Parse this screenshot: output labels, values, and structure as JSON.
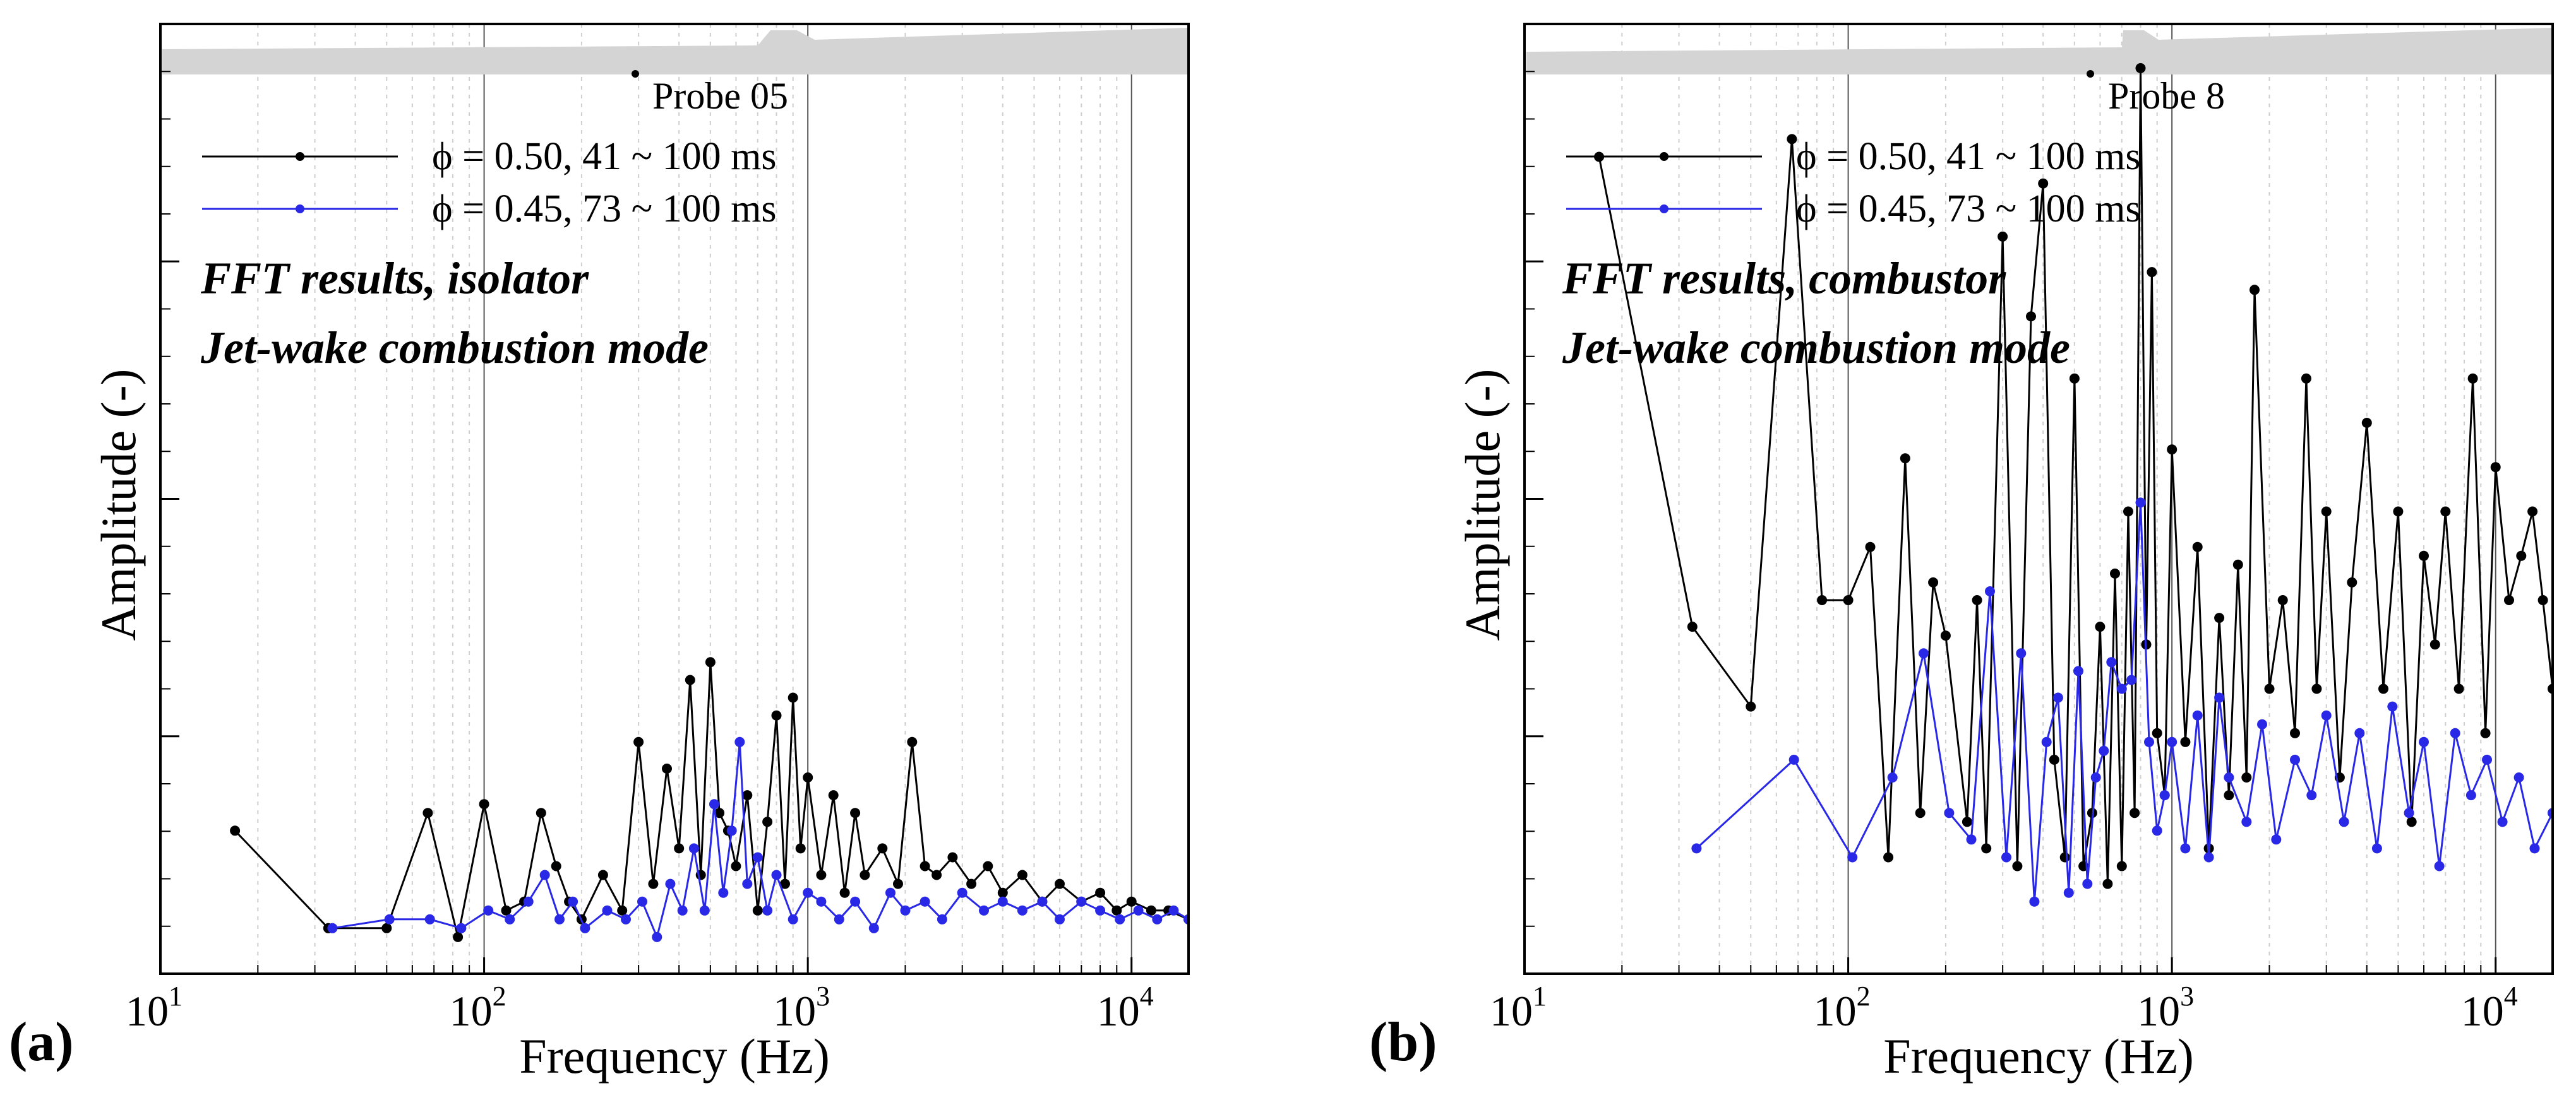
{
  "chart_data": [
    {
      "type": "line",
      "panel_label": "(a)",
      "probe": "Probe 05",
      "annotation": [
        "FFT results, isolator",
        "Jet-wake combustion mode"
      ],
      "xlabel": "Frequency (Hz)",
      "ylabel": "Amplitude (-)",
      "xscale": "log",
      "xlim": [
        10,
        15000
      ],
      "ylim": [
        0,
        1
      ],
      "grid": true,
      "legend_position": "top-left",
      "xticks": [
        {
          "base": "10",
          "exp": "1"
        },
        {
          "base": "10",
          "exp": "2"
        },
        {
          "base": "10",
          "exp": "3"
        },
        {
          "base": "10",
          "exp": "4"
        }
      ],
      "series": [
        {
          "name": "ϕ = 0.50, 41 ~ 100 ms",
          "color": "#000000",
          "x": [
            17,
            33,
            50,
            67,
            83,
            100,
            117,
            133,
            150,
            167,
            183,
            200,
            233,
            267,
            300,
            333,
            367,
            400,
            433,
            467,
            500,
            533,
            567,
            600,
            650,
            700,
            750,
            800,
            850,
            900,
            950,
            1000,
            1100,
            1200,
            1300,
            1400,
            1500,
            1700,
            1900,
            2100,
            2300,
            2500,
            2800,
            3200,
            3600,
            4000,
            4600,
            5300,
            6000,
            7000,
            8000,
            9000,
            10000,
            11500,
            13000,
            15000
          ],
          "y": [
            0.14,
            0.03,
            0.03,
            0.16,
            0.02,
            0.17,
            0.05,
            0.06,
            0.16,
            0.1,
            0.06,
            0.04,
            0.09,
            0.05,
            0.24,
            0.08,
            0.21,
            0.12,
            0.31,
            0.09,
            0.33,
            0.16,
            0.14,
            0.1,
            0.18,
            0.05,
            0.15,
            0.27,
            0.08,
            0.29,
            0.12,
            0.2,
            0.09,
            0.18,
            0.07,
            0.16,
            0.09,
            0.12,
            0.08,
            0.24,
            0.1,
            0.09,
            0.11,
            0.08,
            0.1,
            0.07,
            0.09,
            0.06,
            0.08,
            0.06,
            0.07,
            0.05,
            0.06,
            0.05,
            0.05,
            0.04
          ]
        },
        {
          "name": "ϕ = 0.45, 73 ~ 100 ms",
          "color": "#2828e6",
          "x": [
            34,
            51,
            68,
            85,
            103,
            120,
            137,
            154,
            171,
            188,
            205,
            240,
            274,
            308,
            342,
            376,
            410,
            445,
            480,
            514,
            548,
            582,
            616,
            650,
            700,
            750,
            800,
            900,
            1000,
            1100,
            1250,
            1400,
            1600,
            1800,
            2000,
            2300,
            2600,
            3000,
            3500,
            4000,
            4600,
            5300,
            6000,
            7000,
            8000,
            9200,
            10500,
            12000,
            13500,
            15000
          ],
          "y": [
            0.03,
            0.04,
            0.04,
            0.03,
            0.05,
            0.04,
            0.06,
            0.09,
            0.04,
            0.06,
            0.03,
            0.05,
            0.04,
            0.06,
            0.02,
            0.08,
            0.05,
            0.12,
            0.05,
            0.17,
            0.07,
            0.14,
            0.24,
            0.08,
            0.11,
            0.05,
            0.09,
            0.04,
            0.07,
            0.06,
            0.04,
            0.06,
            0.03,
            0.07,
            0.05,
            0.06,
            0.04,
            0.07,
            0.05,
            0.06,
            0.05,
            0.06,
            0.04,
            0.06,
            0.05,
            0.04,
            0.05,
            0.04,
            0.05,
            0.04
          ]
        }
      ]
    },
    {
      "type": "line",
      "panel_label": "(b)",
      "probe": "Probe 8",
      "annotation": [
        "FFT results, combustor",
        "Jet-wake combustion mode"
      ],
      "xlabel": "Frequency (Hz)",
      "ylabel": "Amplitude (-)",
      "xscale": "log",
      "xlim": [
        10,
        15000
      ],
      "ylim": [
        0,
        1
      ],
      "grid": true,
      "legend_position": "top-left",
      "xticks": [
        {
          "base": "10",
          "exp": "1"
        },
        {
          "base": "10",
          "exp": "2"
        },
        {
          "base": "10",
          "exp": "3"
        },
        {
          "base": "10",
          "exp": "4"
        }
      ],
      "series": [
        {
          "name": "ϕ = 0.50, 41 ~ 100 ms",
          "color": "#000000",
          "x": [
            17,
            33,
            50,
            67,
            83,
            100,
            117,
            133,
            150,
            167,
            183,
            200,
            233,
            250,
            267,
            300,
            333,
            367,
            400,
            433,
            467,
            500,
            533,
            567,
            600,
            633,
            667,
            700,
            733,
            767,
            800,
            833,
            867,
            900,
            950,
            1000,
            1100,
            1200,
            1300,
            1400,
            1500,
            1600,
            1700,
            1800,
            2000,
            2200,
            2400,
            2600,
            2800,
            3000,
            3300,
            3600,
            4000,
            4500,
            5000,
            5500,
            6000,
            6500,
            7000,
            7700,
            8500,
            9300,
            10000,
            11000,
            12000,
            13000,
            14000,
            15000
          ],
          "y": [
            0.9,
            0.37,
            0.28,
            0.92,
            0.4,
            0.4,
            0.46,
            0.11,
            0.56,
            0.16,
            0.42,
            0.36,
            0.15,
            0.4,
            0.12,
            0.81,
            0.1,
            0.72,
            0.87,
            0.22,
            0.11,
            0.65,
            0.1,
            0.16,
            0.37,
            0.08,
            0.43,
            0.1,
            0.5,
            0.16,
            1.0,
            0.35,
            0.77,
            0.25,
            0.18,
            0.57,
            0.24,
            0.46,
            0.12,
            0.38,
            0.18,
            0.44,
            0.2,
            0.75,
            0.3,
            0.4,
            0.25,
            0.65,
            0.3,
            0.5,
            0.2,
            0.42,
            0.6,
            0.3,
            0.5,
            0.15,
            0.45,
            0.35,
            0.5,
            0.3,
            0.65,
            0.25,
            0.55,
            0.4,
            0.45,
            0.5,
            0.4,
            0.3
          ]
        },
        {
          "name": "ϕ = 0.45, 73 ~ 100 ms",
          "color": "#2828e6",
          "x": [
            34,
            68,
            103,
            137,
            171,
            205,
            240,
            274,
            308,
            342,
            376,
            410,
            445,
            480,
            514,
            548,
            582,
            616,
            650,
            700,
            750,
            800,
            850,
            900,
            950,
            1000,
            1100,
            1200,
            1300,
            1400,
            1500,
            1700,
            1900,
            2100,
            2400,
            2700,
            3000,
            3400,
            3800,
            4300,
            4800,
            5400,
            6000,
            6700,
            7500,
            8400,
            9400,
            10500,
            11800,
            13200,
            15000
          ],
          "y": [
            0.12,
            0.22,
            0.11,
            0.2,
            0.34,
            0.16,
            0.13,
            0.41,
            0.11,
            0.34,
            0.06,
            0.24,
            0.29,
            0.07,
            0.32,
            0.08,
            0.2,
            0.23,
            0.33,
            0.3,
            0.31,
            0.51,
            0.24,
            0.14,
            0.18,
            0.24,
            0.12,
            0.27,
            0.11,
            0.29,
            0.2,
            0.15,
            0.26,
            0.13,
            0.22,
            0.18,
            0.27,
            0.15,
            0.25,
            0.12,
            0.28,
            0.16,
            0.24,
            0.1,
            0.25,
            0.18,
            0.22,
            0.15,
            0.2,
            0.12,
            0.16
          ]
        }
      ]
    }
  ]
}
